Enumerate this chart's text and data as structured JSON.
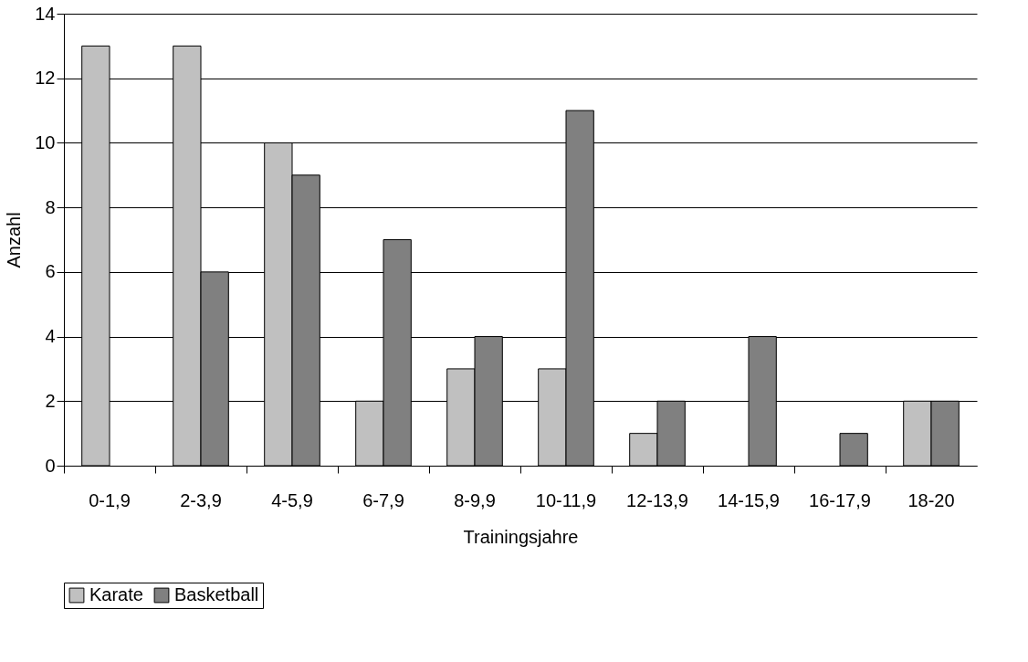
{
  "chart_data": {
    "type": "bar",
    "xlabel": "Trainingsjahre",
    "ylabel": "Anzahl",
    "categories": [
      "0-1,9",
      "2-3,9",
      "4-5,9",
      "6-7,9",
      "8-9,9",
      "10-11,9",
      "12-13,9",
      "14-15,9",
      "16-17,9",
      "18-20"
    ],
    "series": [
      {
        "name": "Karate",
        "color": "#c0c0c0",
        "values": [
          13,
          13,
          10,
          2,
          3,
          3,
          1,
          null,
          null,
          2
        ]
      },
      {
        "name": "Basketball",
        "color": "#808080",
        "values": [
          null,
          6,
          9,
          7,
          4,
          11,
          2,
          4,
          1,
          2
        ]
      }
    ],
    "ylim": [
      0,
      14
    ],
    "yticks": [
      0,
      2,
      4,
      6,
      8,
      10,
      12,
      14
    ],
    "grid": "y",
    "legend": "bottom"
  }
}
